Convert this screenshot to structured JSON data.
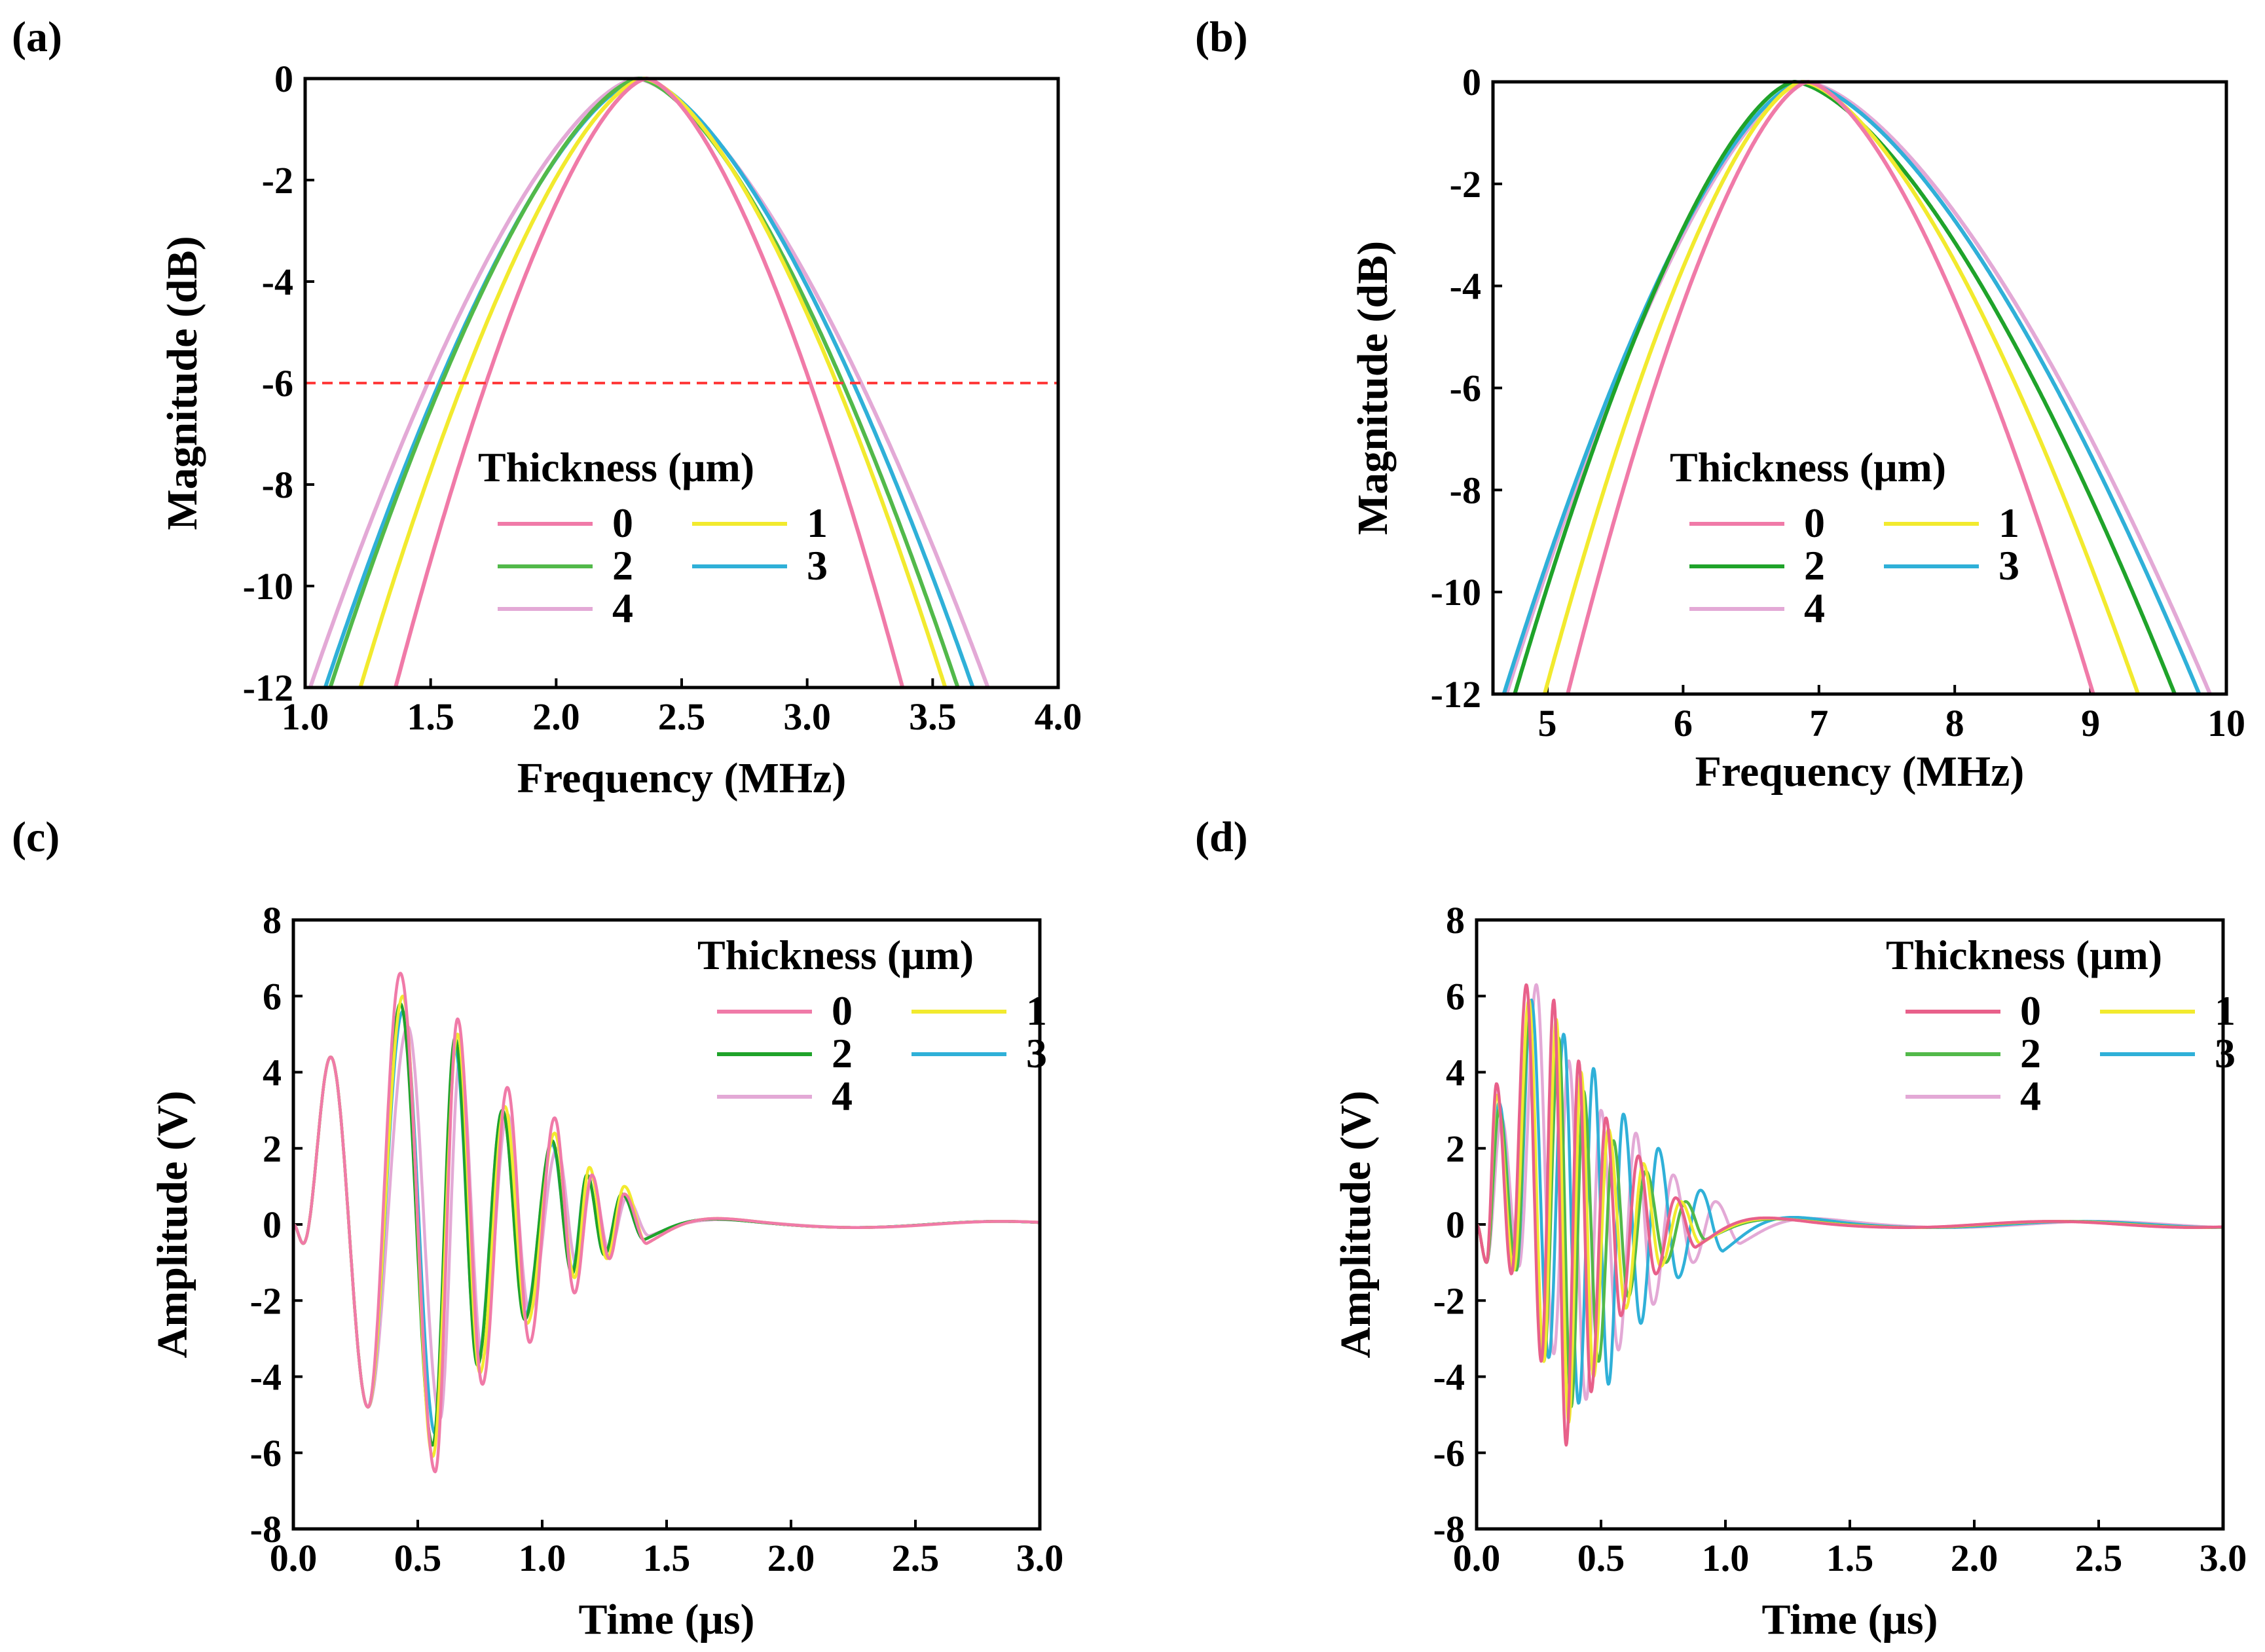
{
  "chart_data": [
    {
      "panel_label": "(a)",
      "type": "line",
      "xlabel": "Frequency (MHz)",
      "ylabel": "Magnitude (dB)",
      "xlim": [
        1.0,
        4.0
      ],
      "ylim": [
        -12,
        0
      ],
      "xticks": [
        "1.0",
        "1.5",
        "2.0",
        "2.5",
        "3.0",
        "3.5",
        "4.0"
      ],
      "yticks": [
        "0",
        "-2",
        "-4",
        "-6",
        "-8",
        "-10",
        "-12"
      ],
      "reference_line": {
        "y": -6,
        "color": "#ff3b3b",
        "style": "dashed"
      },
      "legend": {
        "title": "Thickness (μm)",
        "placement": "lower-center"
      },
      "series": [
        {
          "name": "0",
          "color": "#f07aa8",
          "peak": 2.36,
          "left_at_-12": 1.36,
          "right_at_-12": 3.38
        },
        {
          "name": "1",
          "color": "#f2ea2e",
          "peak": 2.35,
          "left_at_-12": 1.22,
          "right_at_-12": 3.55
        },
        {
          "name": "2",
          "color": "#52b94a",
          "peak": 2.33,
          "left_at_-12": 1.1,
          "right_at_-12": 3.6
        },
        {
          "name": "3",
          "color": "#2fb0d8",
          "peak": 2.34,
          "left_at_-12": 1.08,
          "right_at_-12": 3.66
        },
        {
          "name": "4",
          "color": "#e3a9d6",
          "peak": 2.32,
          "left_at_-12": 1.02,
          "right_at_-12": 3.72
        }
      ]
    },
    {
      "panel_label": "(b)",
      "type": "line",
      "xlabel": "Frequency (MHz)",
      "ylabel": "Magnitude (dB)",
      "xlim": [
        4.6,
        10.0
      ],
      "ylim": [
        -12,
        0
      ],
      "xticks": [
        "5",
        "6",
        "7",
        "8",
        "9",
        "10"
      ],
      "yticks": [
        "0",
        "-2",
        "-4",
        "-6",
        "-8",
        "-10",
        "-12"
      ],
      "legend": {
        "title": "Thickness (μm)",
        "placement": "lower-center"
      },
      "series": [
        {
          "name": "0",
          "color": "#f07aa8",
          "peak": 6.92,
          "left_at_-12": 5.15,
          "right_at_-12": 9.02
        },
        {
          "name": "1",
          "color": "#f2ea2e",
          "peak": 6.88,
          "left_at_-12": 4.98,
          "right_at_-12": 9.35
        },
        {
          "name": "2",
          "color": "#1fa32a",
          "peak": 6.82,
          "left_at_-12": 4.76,
          "right_at_-12": 9.62
        },
        {
          "name": "3",
          "color": "#2fb0d8",
          "peak": 6.88,
          "left_at_-12": 4.68,
          "right_at_-12": 9.8
        },
        {
          "name": "4",
          "color": "#e3a9d6",
          "peak": 6.9,
          "left_at_-12": 4.7,
          "right_at_-12": 9.88
        }
      ]
    },
    {
      "panel_label": "(c)",
      "type": "line",
      "xlabel": "Time (μs)",
      "ylabel": "Amplitude (V)",
      "xlim": [
        0.0,
        3.0
      ],
      "ylim": [
        -8,
        8
      ],
      "xticks": [
        "0.0",
        "0.5",
        "1.0",
        "1.5",
        "2.0",
        "2.5",
        "3.0"
      ],
      "yticks": [
        "8",
        "6",
        "4",
        "2",
        "0",
        "-2",
        "-4",
        "-6",
        "-8"
      ],
      "legend": {
        "title": "Thickness (μm)",
        "placement": "upper-right"
      },
      "series": [
        {
          "name": "0",
          "color": "#f07aa8",
          "extrema_t": [
            0.04,
            0.15,
            0.3,
            0.43,
            0.57,
            0.66,
            0.76,
            0.86,
            0.95,
            1.05,
            1.13,
            1.2,
            1.27,
            1.33,
            1.42
          ],
          "extrema_v": [
            -0.5,
            4.4,
            -4.8,
            6.6,
            -6.5,
            5.4,
            -4.2,
            3.6,
            -3.1,
            2.8,
            -1.8,
            1.3,
            -0.9,
            0.8,
            -0.5
          ]
        },
        {
          "name": "1",
          "color": "#f2ea2e",
          "extrema_t": [
            0.04,
            0.15,
            0.3,
            0.44,
            0.56,
            0.66,
            0.75,
            0.85,
            0.94,
            1.05,
            1.13,
            1.19,
            1.26,
            1.33,
            1.42
          ],
          "extrema_v": [
            -0.5,
            4.4,
            -4.8,
            6.0,
            -6.1,
            5.0,
            -3.9,
            3.1,
            -2.6,
            2.4,
            -1.4,
            1.5,
            -0.9,
            1.0,
            -0.5
          ]
        },
        {
          "name": "2",
          "color": "#1fa32a",
          "extrema_t": [
            0.04,
            0.15,
            0.3,
            0.43,
            0.56,
            0.65,
            0.74,
            0.84,
            0.93,
            1.04,
            1.12,
            1.18,
            1.25,
            1.32,
            1.41
          ],
          "extrema_v": [
            -0.5,
            4.4,
            -4.8,
            5.8,
            -5.8,
            4.9,
            -3.7,
            3.0,
            -2.5,
            2.2,
            -1.3,
            1.3,
            -0.8,
            0.8,
            -0.4
          ]
        },
        {
          "name": "3",
          "color": "#2fb0d8",
          "extrema_t": [
            0.04,
            0.15,
            0.3,
            0.44,
            0.57,
            0.65,
            0.74,
            0.84,
            0.93,
            1.04,
            1.12,
            1.18,
            1.25,
            1.32,
            1.41
          ],
          "extrema_v": [
            -0.5,
            4.4,
            -4.8,
            5.6,
            -5.5,
            4.6,
            -3.6,
            3.0,
            -2.4,
            2.1,
            -1.2,
            1.3,
            -0.8,
            0.8,
            -0.4
          ]
        },
        {
          "name": "4",
          "color": "#e3a9d6",
          "extrema_t": [
            0.04,
            0.15,
            0.3,
            0.46,
            0.59,
            0.67,
            0.76,
            0.86,
            0.95,
            1.06,
            1.14,
            1.2,
            1.27,
            1.34,
            1.43
          ],
          "extrema_v": [
            -0.5,
            4.4,
            -4.8,
            5.2,
            -5.1,
            4.4,
            -3.5,
            2.9,
            -2.3,
            2.0,
            -1.1,
            1.2,
            -0.7,
            0.7,
            -0.3
          ]
        }
      ]
    },
    {
      "panel_label": "(d)",
      "type": "line",
      "xlabel": "Time (μs)",
      "ylabel": "Amplitude (V)",
      "xlim": [
        0.0,
        3.0
      ],
      "ylim": [
        -8,
        8
      ],
      "xticks": [
        "0.0",
        "0.5",
        "1.0",
        "1.5",
        "2.0",
        "2.5",
        "3.0"
      ],
      "yticks": [
        "8",
        "6",
        "4",
        "2",
        "0",
        "-2",
        "-4",
        "-6",
        "-8"
      ],
      "legend": {
        "title": "Thickness (μm)",
        "placement": "upper-right"
      },
      "series": [
        {
          "name": "0",
          "color": "#e8608a",
          "extrema_t": [
            0.04,
            0.08,
            0.14,
            0.2,
            0.26,
            0.31,
            0.36,
            0.41,
            0.46,
            0.52,
            0.58,
            0.65,
            0.72,
            0.8,
            0.88
          ],
          "extrema_v": [
            -1.0,
            3.7,
            -1.3,
            6.3,
            -3.6,
            5.9,
            -5.8,
            4.3,
            -4.4,
            2.8,
            -2.4,
            1.8,
            -1.3,
            0.7,
            -0.6
          ]
        },
        {
          "name": "1",
          "color": "#f2ea2e",
          "extrema_t": [
            0.04,
            0.08,
            0.15,
            0.21,
            0.27,
            0.32,
            0.37,
            0.42,
            0.47,
            0.53,
            0.6,
            0.67,
            0.74,
            0.82,
            0.9
          ],
          "extrema_v": [
            -1.0,
            3.4,
            -1.2,
            5.9,
            -3.6,
            5.4,
            -5.2,
            4.0,
            -4.0,
            2.5,
            -2.2,
            1.6,
            -1.1,
            0.6,
            -0.5
          ]
        },
        {
          "name": "2",
          "color": "#52b94a",
          "extrema_t": [
            0.04,
            0.09,
            0.16,
            0.21,
            0.27,
            0.33,
            0.38,
            0.43,
            0.49,
            0.55,
            0.61,
            0.68,
            0.76,
            0.84,
            0.92
          ],
          "extrema_v": [
            -1.0,
            3.0,
            -1.2,
            5.3,
            -3.6,
            4.9,
            -4.8,
            3.5,
            -3.6,
            2.2,
            -1.9,
            1.4,
            -1.0,
            0.6,
            -0.4
          ]
        },
        {
          "name": "3",
          "color": "#2fb0d8",
          "extrema_t": [
            0.04,
            0.09,
            0.16,
            0.22,
            0.29,
            0.35,
            0.41,
            0.47,
            0.53,
            0.59,
            0.66,
            0.73,
            0.81,
            0.9,
            0.99
          ],
          "extrema_v": [
            -1.0,
            3.2,
            -1.2,
            5.9,
            -3.5,
            5.0,
            -4.7,
            4.1,
            -4.2,
            2.9,
            -2.6,
            2.0,
            -1.4,
            0.9,
            -0.7
          ]
        },
        {
          "name": "4",
          "color": "#e3a9d6",
          "extrema_t": [
            0.04,
            0.1,
            0.17,
            0.24,
            0.31,
            0.37,
            0.44,
            0.5,
            0.57,
            0.64,
            0.71,
            0.79,
            0.87,
            0.96,
            1.06
          ],
          "extrema_v": [
            -1.0,
            2.8,
            -1.1,
            6.3,
            -3.4,
            4.3,
            -4.6,
            3.0,
            -3.3,
            2.4,
            -2.1,
            1.3,
            -1.0,
            0.6,
            -0.5
          ]
        }
      ]
    }
  ]
}
